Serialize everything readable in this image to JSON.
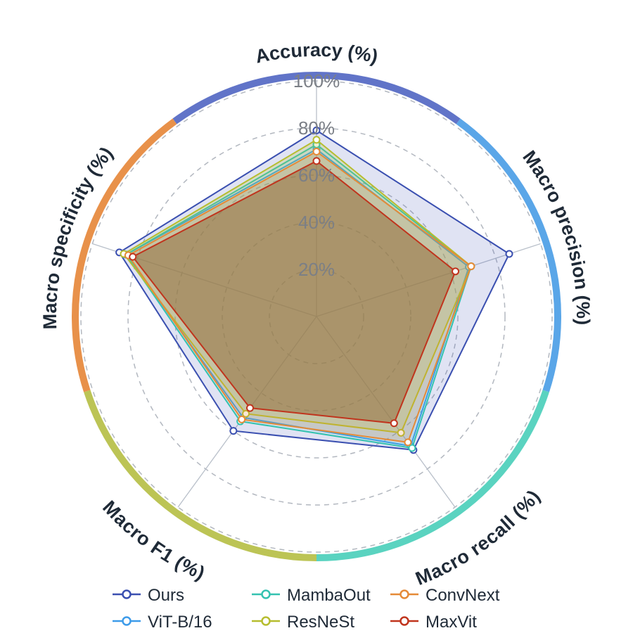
{
  "chart_data": {
    "type": "radar",
    "axes": [
      "Accuracy (%)",
      "Macro precision (%)",
      "Macro recall (%)",
      "Macro F1 (%)",
      "Macro specificity (%)"
    ],
    "rlim": [
      0,
      100
    ],
    "ticks": [
      "20%",
      "40%",
      "60%",
      "80%",
      "100%"
    ],
    "grid": true,
    "legend_position": "bottom",
    "series": [
      {
        "name": "Ours",
        "color": "#3a4fb0",
        "values": [
          79,
          86,
          70,
          60,
          88
        ]
      },
      {
        "name": "ViT-B/16",
        "color": "#3d9be9",
        "values": [
          71,
          68,
          68,
          53,
          85
        ]
      },
      {
        "name": "MambaOut",
        "color": "#34c2b0",
        "values": [
          73,
          69,
          69,
          55,
          85
        ]
      },
      {
        "name": "ResNeSt",
        "color": "#b6bd2f",
        "values": [
          75,
          69,
          61,
          51,
          86
        ]
      },
      {
        "name": "ConvNext",
        "color": "#e58a37",
        "values": [
          70,
          69,
          66,
          54,
          84
        ]
      },
      {
        "name": "MaxVit",
        "color": "#c0341d",
        "values": [
          66,
          62,
          56,
          48,
          82
        ]
      }
    ],
    "ring_colors": [
      "#6174c8",
      "#5aa6e8",
      "#5ad3c0",
      "#bcc455",
      "#e8914a"
    ]
  }
}
